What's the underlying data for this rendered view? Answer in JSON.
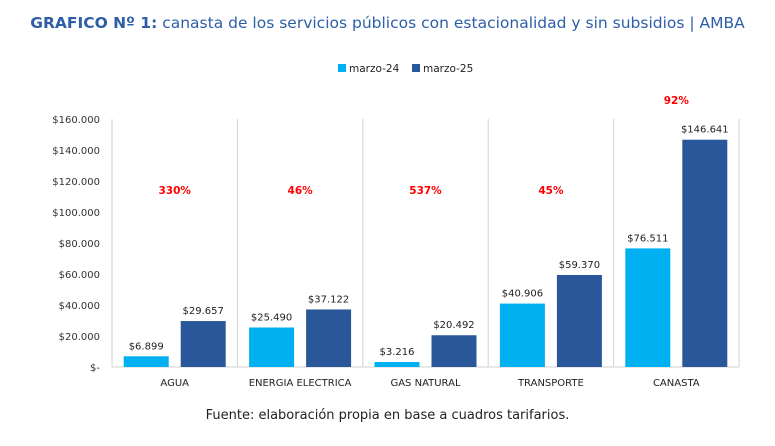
{
  "title": {
    "bold": "GRAFICO Nº 1:",
    "rest": " canasta de los servicios públicos con estacionalidad y sin subsidios | AMBA"
  },
  "footer": "Fuente: elaboración propia en base a cuadros tarifarios.",
  "chart_data": {
    "type": "bar",
    "title": "GRAFICO Nº 1: canasta de los servicios públicos con estacionalidad y sin subsidios | AMBA",
    "xlabel": "",
    "ylabel": "",
    "categories": [
      "AGUA",
      "ENERGIA ELECTRICA",
      "GAS NATURAL",
      "TRANSPORTE",
      "CANASTA"
    ],
    "series": [
      {
        "name": "marzo-24",
        "color": "#00B0F0",
        "values": [
          6899,
          25490,
          3216,
          40906,
          76511
        ],
        "labels": [
          "$6.899",
          "$25.490",
          "$3.216",
          "$40.906",
          "$76.511"
        ]
      },
      {
        "name": "marzo-25",
        "color": "#2A579A",
        "values": [
          29657,
          37122,
          20492,
          59370,
          146641
        ],
        "labels": [
          "$29.657",
          "$37.122",
          "$20.492",
          "$59.370",
          "$146.641"
        ]
      }
    ],
    "annotations": [
      "330%",
      "46%",
      "537%",
      "45%",
      "92%"
    ],
    "annotation_color": "#FF0000",
    "ylim": [
      0,
      160000
    ],
    "yticks": [
      0,
      20000,
      40000,
      60000,
      80000,
      100000,
      120000,
      140000,
      160000
    ],
    "ytick_labels": [
      "$-",
      "$20.000",
      "$40.000",
      "$60.000",
      "$80.000",
      "$100.000",
      "$120.000",
      "$140.000",
      "$160.000"
    ],
    "grid": false,
    "category_separators": true,
    "legend": {
      "position": "top-center",
      "entries": [
        "marzo-24",
        "marzo-25"
      ]
    }
  }
}
